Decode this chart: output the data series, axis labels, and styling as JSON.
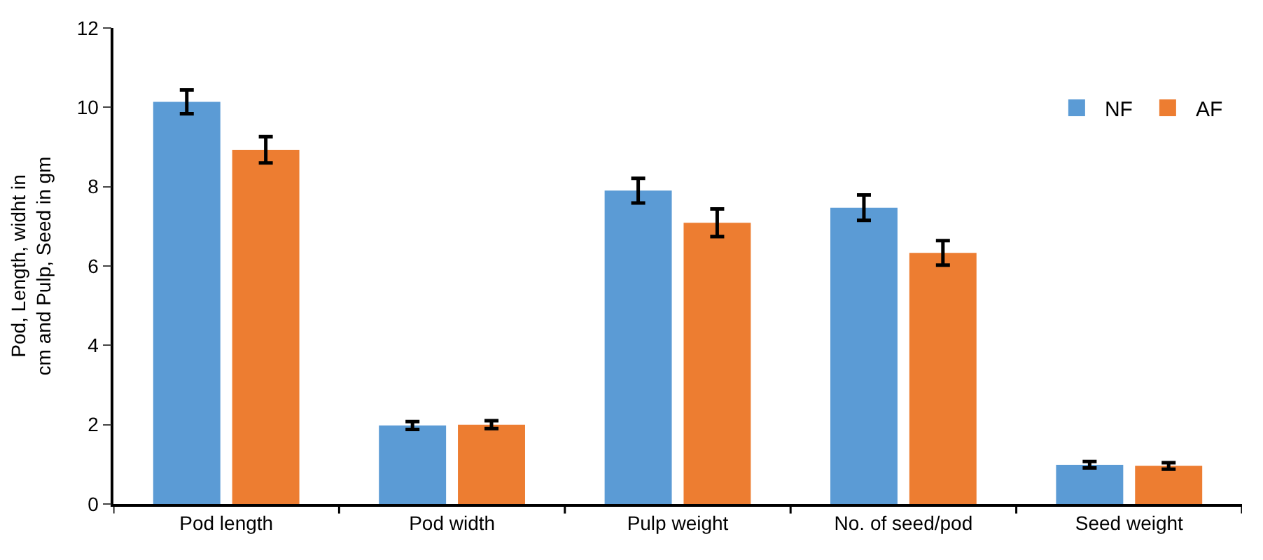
{
  "chart_data": {
    "type": "bar",
    "ylabel": "Pod, Length, widht in cm and Pulp, Seed in gm",
    "categories": [
      "Pod length",
      "Pod width",
      "Pulp weight",
      "No. of seed/pod",
      "Seed weight"
    ],
    "series": [
      {
        "name": "NF",
        "color": "#5b9bd5",
        "values": [
          10.14,
          1.98,
          7.9,
          7.47,
          0.99
        ],
        "errors": [
          0.3,
          0.1,
          0.31,
          0.32,
          0.08
        ]
      },
      {
        "name": "AF",
        "color": "#ed7d31",
        "values": [
          8.93,
          2.0,
          7.09,
          6.33,
          0.96
        ],
        "errors": [
          0.33,
          0.1,
          0.35,
          0.31,
          0.08
        ]
      }
    ],
    "ylim": [
      0,
      12
    ],
    "yticks": [
      0,
      2,
      4,
      6,
      8,
      10,
      12
    ],
    "legend": "top right"
  }
}
